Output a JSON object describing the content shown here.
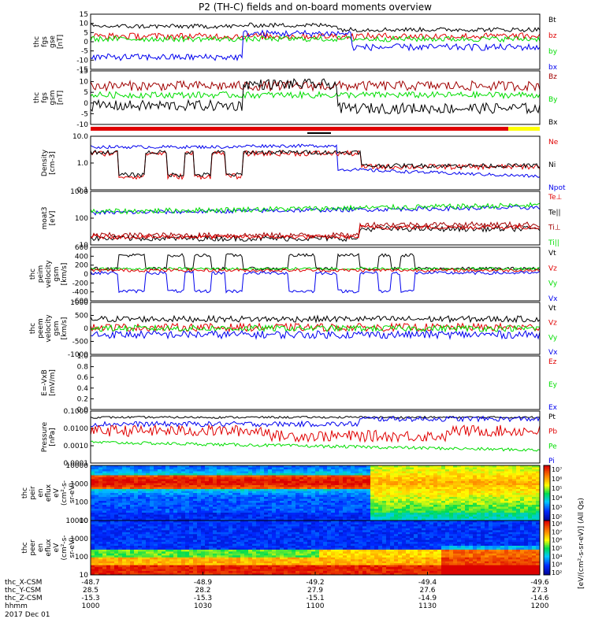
{
  "title": "P2 (TH-C) fields and on-board moments overview",
  "colors": {
    "black": "#000000",
    "red": "#e00000",
    "green": "#00dd00",
    "blue": "#0000ee",
    "darkred": "#a00000",
    "yellow": "#ffff00"
  },
  "chart_data": [
    {
      "id": "p1",
      "type": "line",
      "ylabel": [
        "thc",
        "fgs",
        "gse",
        "[nT]"
      ],
      "yticks": [
        "15",
        "10",
        "5",
        "0",
        "-5",
        "-10",
        "-15"
      ],
      "legend": [
        "Bt",
        "bz",
        "by",
        "bx"
      ],
      "legend_colors": [
        "black",
        "red",
        "green",
        "blue"
      ]
    },
    {
      "id": "p2",
      "type": "line",
      "ylabel": [
        "thc",
        "fgs",
        "gsm",
        "[nT]"
      ],
      "yticks": [
        "15",
        "10",
        "5",
        "0",
        "-5",
        "-10"
      ],
      "legend": [
        "Bz",
        "By",
        "Bx"
      ],
      "legend_colors": [
        "darkred",
        "green",
        "black"
      ]
    },
    {
      "id": "p3",
      "type": "line",
      "ylabel": [
        "Density",
        "[cm-3]"
      ],
      "yticks": [
        "10.0",
        "1.0",
        "0.1"
      ],
      "legend": [
        "Ne",
        "Ni",
        "Npot"
      ],
      "legend_colors": [
        "red",
        "black",
        "blue"
      ]
    },
    {
      "id": "p4",
      "type": "line",
      "ylabel": [
        "moat3",
        "[eV]"
      ],
      "yticks": [
        "1000",
        "100",
        "10"
      ],
      "legend": [
        "Te⊥",
        "Te||",
        "Ti⊥",
        "Ti||"
      ],
      "legend_colors": [
        "red",
        "black",
        "darkred",
        "green"
      ]
    },
    {
      "id": "p5",
      "type": "line",
      "ylabel": [
        "thc",
        "peim",
        "velocity",
        "gsm",
        "[km/s]"
      ],
      "yticks": [
        "600",
        "400",
        "200",
        "0",
        "-200",
        "-400",
        "-600"
      ],
      "legend": [
        "Vt",
        "Vz",
        "Vy",
        "Vx"
      ],
      "legend_colors": [
        "black",
        "red",
        "green",
        "blue"
      ]
    },
    {
      "id": "p6",
      "type": "line",
      "ylabel": [
        "thc",
        "peem",
        "velocity",
        "gsm",
        "[km/s]"
      ],
      "yticks": [
        "1000",
        "500",
        "0",
        "-500",
        "-1000"
      ],
      "legend": [
        "Vt",
        "Vz",
        "Vy",
        "Vx"
      ],
      "legend_colors": [
        "black",
        "red",
        "green",
        "blue"
      ]
    },
    {
      "id": "p7",
      "type": "line",
      "ylabel": [
        "E=-VxB",
        "[mV/m]"
      ],
      "yticks": [
        "1.0",
        "0.8",
        "0.6",
        "0.4",
        "0.2",
        "0.0"
      ],
      "legend": [
        "Ez",
        "Ey",
        "Ex"
      ],
      "legend_colors": [
        "red",
        "green",
        "blue"
      ]
    },
    {
      "id": "p8",
      "type": "line",
      "ylabel": [
        "Pressure",
        "[nPa]"
      ],
      "yticks": [
        "0.1000",
        "0.0100",
        "0.0010",
        "0.0001"
      ],
      "legend": [
        "Pt",
        "Pb",
        "Pe",
        "Pi"
      ],
      "legend_colors": [
        "black",
        "red",
        "green",
        "blue"
      ]
    },
    {
      "id": "p9",
      "type": "heatmap",
      "ylabel": [
        "thc",
        "peir",
        "en",
        "eflux",
        "eV",
        "(cm²-s-",
        "sr-eV)"
      ],
      "yticks": [
        "10000",
        "1000",
        "100",
        "10"
      ]
    },
    {
      "id": "p10",
      "type": "heatmap",
      "ylabel": [
        "thc",
        "peer",
        "en",
        "eflux",
        "eV",
        "(cm²-s-",
        "sr-eV)"
      ],
      "yticks": [
        "10000",
        "1000",
        "100",
        "10"
      ]
    }
  ],
  "colorbar": {
    "ticks": [
      "10⁷",
      "10⁶",
      "10⁵",
      "10⁴",
      "10³",
      "10²",
      "10⁸",
      "10⁷",
      "10⁶",
      "10⁵",
      "10⁴",
      "10³",
      "10²"
    ],
    "label": "[eV/(cm²-s-sr-eV)] (All Qs)"
  },
  "axis_labels": {
    "rows": [
      {
        "name": "thc_X-CSM",
        "values": [
          "-48.7",
          "-48.9",
          "-49.2",
          "-49.4",
          "-49.6"
        ]
      },
      {
        "name": "thc_Y-CSM",
        "values": [
          "28.5",
          "28.2",
          "27.9",
          "27.6",
          "27.3"
        ]
      },
      {
        "name": "thc_Z-CSM",
        "values": [
          "-15.3",
          "-15.3",
          "-15.1",
          "-14.9",
          "-14.6"
        ]
      },
      {
        "name": "hhmm",
        "values": [
          "1000",
          "1030",
          "1100",
          "1130",
          "1200"
        ]
      }
    ],
    "date": "2017 Dec 01"
  }
}
